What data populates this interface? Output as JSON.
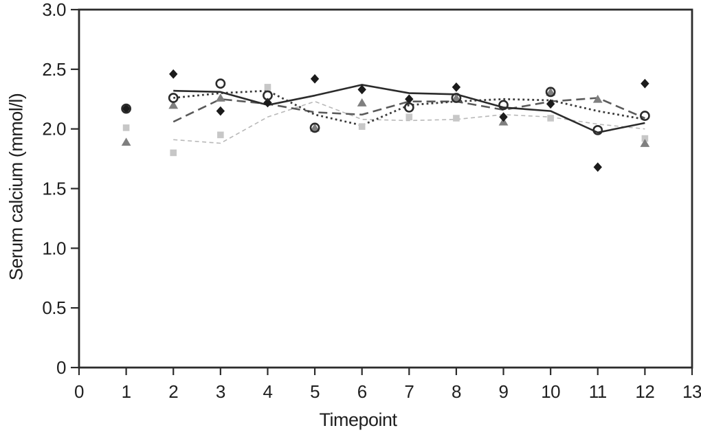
{
  "figure": {
    "xlabel": "Timepoint",
    "ylabel": "Serum calcium (mmol/l)"
  },
  "chart_data": {
    "type": "scatter",
    "subtype": "line+scatter combo, grayscale, no legend, full box frame",
    "title": "",
    "xlabel": "Timepoint",
    "ylabel": "Serum calcium (mmol/l)",
    "xlim": [
      0,
      13
    ],
    "ylim": [
      0,
      3.0
    ],
    "x_ticks": [
      0,
      1,
      2,
      3,
      4,
      5,
      6,
      7,
      8,
      9,
      10,
      11,
      12,
      13
    ],
    "x_tick_labels": [
      "0",
      "1",
      "2",
      "3",
      "4",
      "5",
      "6",
      "7",
      "8",
      "9",
      "10",
      "11",
      "12",
      "13"
    ],
    "y_ticks": [
      0,
      0.5,
      1.0,
      1.5,
      2.0,
      2.5,
      3.0
    ],
    "y_tick_labels": [
      "0",
      "0.5",
      "1.0",
      "1.5",
      "2.0",
      "2.5",
      "3.0"
    ],
    "grid": false,
    "legend_position": "none",
    "colors": {
      "axis": "#2b2b2b",
      "text": "#1f1f1f",
      "solid_line": "#2b2b2b",
      "dotted_line": "#3a3a3a",
      "dashed_line": "#5a5a5a",
      "fine_dashed_line": "#b8b8b8",
      "diamond": "#1b1b1b",
      "circle_stroke": "#2b2b2b",
      "triangle": "#7f7f7f",
      "square": "#c7c7c7"
    },
    "line_series": [
      {
        "name": "fine-dashed-light-line",
        "style": "fine-dashed",
        "color": "#b8b8b8",
        "width": 1.6,
        "x": [
          2,
          3,
          4,
          5,
          6,
          7,
          8,
          9,
          10,
          11,
          12
        ],
        "y": [
          1.91,
          1.88,
          2.1,
          2.23,
          2.08,
          2.07,
          2.08,
          2.12,
          2.1,
          2.04,
          2.0
        ]
      },
      {
        "name": "dashed-line",
        "style": "dashed",
        "color": "#5a5a5a",
        "width": 2.6,
        "x": [
          2,
          3,
          4,
          5,
          6,
          7,
          8,
          9,
          10,
          11,
          12
        ],
        "y": [
          2.06,
          2.25,
          2.21,
          2.14,
          2.12,
          2.23,
          2.23,
          2.16,
          2.23,
          2.26,
          2.09
        ]
      },
      {
        "name": "dotted-line",
        "style": "dotted",
        "color": "#3a3a3a",
        "width": 2.8,
        "x": [
          2,
          3,
          4,
          5,
          6,
          7,
          8,
          9,
          10,
          11,
          12
        ],
        "y": [
          2.26,
          2.3,
          2.32,
          2.12,
          2.03,
          2.2,
          2.23,
          2.25,
          2.24,
          2.15,
          2.08
        ]
      },
      {
        "name": "solid-line",
        "style": "solid",
        "color": "#2b2b2b",
        "width": 2.6,
        "x": [
          2,
          3,
          4,
          5,
          6,
          7,
          8,
          9,
          10,
          11,
          12
        ],
        "y": [
          2.32,
          2.31,
          2.2,
          2.28,
          2.37,
          2.3,
          2.29,
          2.18,
          2.15,
          1.97,
          2.05
        ]
      }
    ],
    "scatter_series": [
      {
        "name": "square-markers",
        "marker": "square",
        "color": "#c7c7c7",
        "x": [
          1,
          2,
          3,
          4,
          5,
          6,
          7,
          8,
          9,
          10,
          11,
          12
        ],
        "y": [
          2.01,
          1.8,
          1.95,
          2.35,
          null,
          2.02,
          2.1,
          2.09,
          null,
          2.09,
          null,
          1.92
        ]
      },
      {
        "name": "triangle-markers",
        "marker": "triangle",
        "color": "#7f7f7f",
        "x": [
          1,
          2,
          3,
          4,
          5,
          6,
          7,
          8,
          9,
          10,
          11,
          12
        ],
        "y": [
          1.89,
          2.2,
          2.26,
          null,
          2.01,
          2.22,
          null,
          2.26,
          2.06,
          2.31,
          2.25,
          1.88
        ]
      },
      {
        "name": "diamond-markers",
        "marker": "diamond",
        "color": "#1b1b1b",
        "x": [
          1,
          2,
          3,
          4,
          5,
          6,
          7,
          8,
          9,
          10,
          11,
          12
        ],
        "y": [
          2.17,
          2.46,
          2.15,
          2.22,
          2.42,
          2.33,
          2.25,
          2.35,
          2.1,
          2.21,
          1.68,
          2.38
        ]
      },
      {
        "name": "circle-markers",
        "marker": "open-circle",
        "color": "#2b2b2b",
        "x": [
          1,
          2,
          3,
          4,
          5,
          6,
          7,
          8,
          9,
          10,
          11,
          12
        ],
        "y": [
          2.17,
          2.26,
          2.38,
          2.28,
          2.01,
          null,
          2.18,
          2.26,
          2.2,
          2.31,
          1.99,
          2.11
        ]
      }
    ]
  }
}
